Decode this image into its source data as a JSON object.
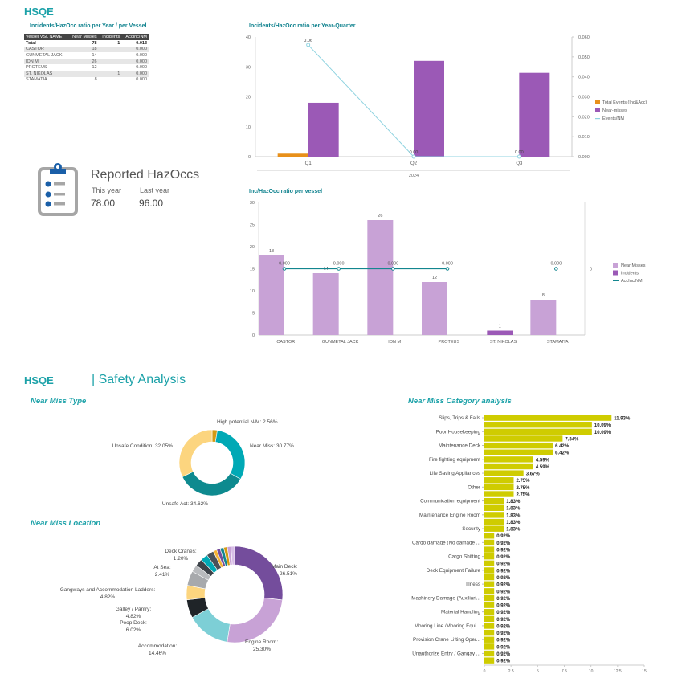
{
  "header": {
    "title": "HSQE"
  },
  "vessel_table": {
    "title": "Incidents/HazOcc ratio per Year / per Vessel",
    "columns": [
      "Vessel VSL NAME",
      "Near Misses",
      "Incidents",
      "AccInc/NM"
    ],
    "rows": [
      [
        "Total",
        "78",
        "1",
        "0.013"
      ],
      [
        "CASTOR",
        "18",
        "",
        "0.000"
      ],
      [
        "GUNMETAL JACK",
        "14",
        "",
        "0.000"
      ],
      [
        "ION M",
        "26",
        "",
        "0.000"
      ],
      [
        "PROTEUS",
        "12",
        "",
        "0.000"
      ],
      [
        "ST. NIKOLAS",
        "",
        "1",
        "0.000"
      ],
      [
        "STAMATIA",
        "8",
        "",
        "0.000"
      ]
    ]
  },
  "kpi": {
    "title": "Reported HazOccs",
    "this_year_label": "This year",
    "last_year_label": "Last year",
    "this_year": "78.00",
    "last_year": "96.00"
  },
  "section2": {
    "title": "HSQE",
    "subtitle": "| Safety Analysis"
  },
  "chart_data": [
    {
      "type": "bar",
      "title": "Incidents/HazOcc ratio per Year-Quarter",
      "categories": [
        "Q1",
        "Q2",
        "Q3"
      ],
      "group_label": "2024",
      "ylim": [
        0,
        40
      ],
      "yticks": [
        "0",
        "10",
        "20",
        "30",
        "40"
      ],
      "y2lim": [
        0,
        0.06
      ],
      "y2ticks": [
        "0.000",
        "0.010",
        "0.020",
        "0.030",
        "0.040",
        "0.050",
        "0.060"
      ],
      "series": [
        {
          "name": "Total Events (Inc&Acc)",
          "values": [
            1,
            0,
            0
          ],
          "color": "#e8901a"
        },
        {
          "name": "Near-misses",
          "values": [
            18,
            32,
            28
          ],
          "color": "#9b59b6"
        },
        {
          "name": "Events/NM",
          "type": "line",
          "values": [
            0.056,
            0,
            0
          ],
          "labels": [
            "0.06",
            "0.00",
            "0.00"
          ],
          "color": "#8fd3e0"
        }
      ]
    },
    {
      "type": "bar",
      "title": "Inc/HazOcc ratio per vessel",
      "categories": [
        "CASTOR",
        "GUNMETAL JACK",
        "ION M",
        "PROTEUS",
        "ST. NIKOLAS",
        "STAMATIA"
      ],
      "ylim": [
        0,
        30
      ],
      "yticks": [
        "0",
        "5",
        "10",
        "15",
        "20",
        "25",
        "30"
      ],
      "y2tick": "0",
      "series": [
        {
          "name": "Near Misses",
          "values": [
            18,
            14,
            26,
            12,
            null,
            8
          ],
          "color": "#c8a2d6"
        },
        {
          "name": "Incidents",
          "values": [
            null,
            null,
            null,
            null,
            1,
            null
          ],
          "color": "#9b59b6"
        },
        {
          "name": "AccInc/NM",
          "type": "line",
          "values": [
            0,
            0,
            0,
            0,
            null,
            0
          ],
          "labels": [
            "0.000",
            "0.000",
            "0.000",
            "0.000",
            "",
            "0.000"
          ],
          "color": "#13868f"
        }
      ]
    },
    {
      "type": "pie",
      "title": "Near Miss Type",
      "slices": [
        {
          "label": "High potential  N/M: 2.56%",
          "value": 2.56,
          "color": "#d49a12"
        },
        {
          "label": "Near Miss: 30.77%",
          "value": 30.77,
          "color": "#00a9b5"
        },
        {
          "label": "Unsafe Act: 34.62%",
          "value": 34.62,
          "color": "#0e8a8f"
        },
        {
          "label": "Unsafe Condition: 32.05%",
          "value": 32.05,
          "color": "#fcd57f"
        }
      ]
    },
    {
      "type": "pie",
      "title": "Near Miss Location",
      "slices": [
        {
          "label": "Main Deck:",
          "pct": "26.51%",
          "value": 26.51,
          "color": "#744d9c"
        },
        {
          "label": "Engine Room:",
          "pct": "25.30%",
          "value": 25.3,
          "color": "#c8a2d6"
        },
        {
          "label": "Accommodation:",
          "pct": "14.46%",
          "value": 14.46,
          "color": "#7dcfd6"
        },
        {
          "label": "Poop Deck:",
          "pct": "6.02%",
          "value": 6.02,
          "color": "#1f2428"
        },
        {
          "label": "Galley / Pantry:",
          "pct": "4.82%",
          "value": 4.82,
          "color": "#fcd57f"
        },
        {
          "label": "Gangways and Accommodation Ladders:",
          "pct": "4.82%",
          "value": 4.82,
          "color": "#a7a9ac"
        },
        {
          "value": 2.41,
          "color": "#b8babd"
        },
        {
          "label": "At Sea:",
          "pct": "2.41%",
          "value": 2.41,
          "color": "#3d4349"
        },
        {
          "value": 2.41,
          "color": "#00a9b5"
        },
        {
          "value": 2.41,
          "color": "#4a5159"
        },
        {
          "value": 1.2,
          "color": "#f5b335"
        },
        {
          "value": 1.2,
          "color": "#744d9c"
        },
        {
          "value": 1.2,
          "color": "#13868f"
        },
        {
          "label": "Deck Cranes:",
          "pct": "1.20%",
          "value": 1.2,
          "color": "#d49a12"
        },
        {
          "value": 1.2,
          "color": "#c8a2d6"
        },
        {
          "value": 1.2,
          "color": "#d7bde6"
        }
      ]
    },
    {
      "type": "bar",
      "orientation": "horizontal",
      "title": "Near Miss Category analysis",
      "xlim": [
        0,
        15
      ],
      "xticks": [
        "0",
        "2.5",
        "5",
        "7.5",
        "10",
        "12.5",
        "15"
      ],
      "color": "#cfcc00",
      "labels": [
        "Slips, Trips & Falls",
        "",
        "Poor Housekeeping",
        "",
        "Maintenance Deck",
        "",
        "Fire fighting equipment",
        "",
        "Life Saving Appliances",
        "",
        "Other",
        "",
        "Communication equipment",
        "",
        "Maintenance Engine Room",
        "",
        "Security",
        "",
        "Cargo damage (No damage ...",
        "",
        "Cargo Shifting",
        "",
        "Deck Equipment Failure",
        "",
        "Illness",
        "",
        "Machinery Damage (Auxiliari...",
        "",
        "Material Handling",
        "",
        "Mooring Line /Mooring Equi...",
        "",
        "Provision Crane Lifting Oper...",
        "",
        "Unauthorize Entry / Gangay ...",
        ""
      ],
      "values": [
        11.93,
        10.09,
        10.09,
        7.34,
        6.42,
        6.42,
        4.59,
        4.59,
        3.67,
        2.75,
        2.75,
        2.75,
        1.83,
        1.83,
        1.83,
        1.83,
        1.83,
        0.92,
        0.92,
        0.92,
        0.92,
        0.92,
        0.92,
        0.92,
        0.92,
        0.92,
        0.92,
        0.92,
        0.92,
        0.92,
        0.92,
        0.92,
        0.92,
        0.92,
        0.92,
        0.92
      ]
    }
  ]
}
